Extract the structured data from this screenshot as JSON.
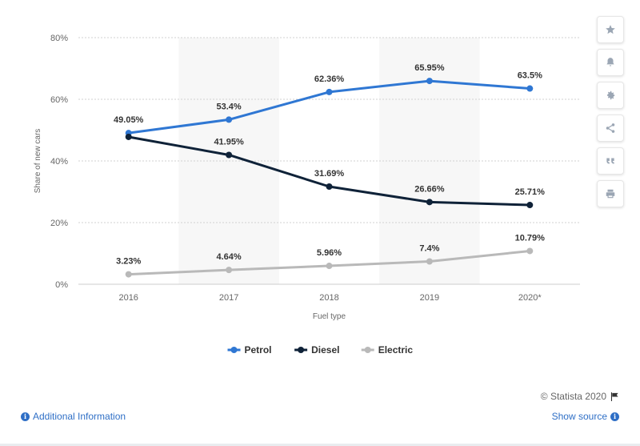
{
  "chart_data": {
    "type": "line",
    "categories": [
      "2016",
      "2017",
      "2018",
      "2019",
      "2020*"
    ],
    "series": [
      {
        "name": "Petrol",
        "color": "#2f77d3",
        "values": [
          49.05,
          53.4,
          62.36,
          65.95,
          63.5
        ],
        "labels": [
          "49.05%",
          "53.4%",
          "62.36%",
          "65.95%",
          "63.5%"
        ]
      },
      {
        "name": "Diesel",
        "color": "#0f2238",
        "values": [
          47.8,
          41.95,
          31.69,
          26.66,
          25.71
        ],
        "labels": [
          "",
          "41.95%",
          "31.69%",
          "26.66%",
          "25.71%"
        ]
      },
      {
        "name": "Electric",
        "color": "#b9b9b9",
        "values": [
          3.23,
          4.64,
          5.96,
          7.4,
          10.79
        ],
        "labels": [
          "3.23%",
          "4.64%",
          "5.96%",
          "7.4%",
          "10.79%"
        ]
      }
    ],
    "xlabel": "Fuel type",
    "ylabel": "Share of new cars",
    "ylim": [
      0,
      80
    ],
    "yticks": [
      "0%",
      "20%",
      "40%",
      "60%",
      "80%"
    ],
    "grid": true,
    "legend_position": "bottom-center"
  },
  "toolbar": {
    "icons": [
      "star-icon",
      "bell-icon",
      "gear-icon",
      "share-icon",
      "quote-icon",
      "print-icon"
    ]
  },
  "footer": {
    "copyright": "© Statista 2020",
    "additional_info": "Additional Information",
    "show_source": "Show source"
  }
}
